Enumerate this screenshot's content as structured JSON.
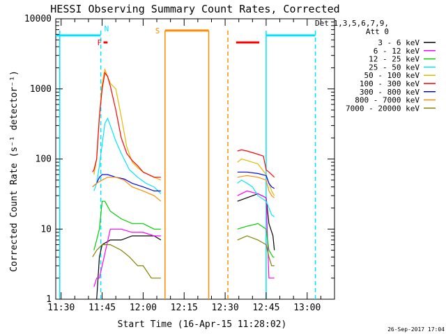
{
  "chart_data": {
    "type": "line",
    "title": "HESSI Observing Summary Count Rates, Corrected",
    "xlabel": "Start Time (16-Apr-15 11:28:02)",
    "ylabel": "Corrected Count Rate (s⁻¹ detector⁻¹)",
    "y_scale": "log",
    "ylim": [
      1,
      10000
    ],
    "xlim": [
      "11:28:02",
      "13:10:00"
    ],
    "x_ticks": [
      "11:30",
      "11:45",
      "12:00",
      "12:15",
      "12:30",
      "12:45",
      "13:00"
    ],
    "y_ticks": [
      "1",
      "10",
      "100",
      "1000",
      "10000"
    ],
    "footer_date": "26-Sep-2017 17:04",
    "legend_header": [
      "Det 1,3,5,6,7,9,",
      "Att 0"
    ],
    "series": [
      {
        "name": "3 - 6 keV",
        "color": "#000000",
        "segments": [
          [
            [
              "11:43:00",
              1
            ],
            [
              "11:43:30",
              2
            ],
            [
              "11:44:00",
              4
            ],
            [
              "11:45:00",
              6
            ],
            [
              "11:48:00",
              7
            ],
            [
              "11:52:00",
              7
            ],
            [
              "11:56:00",
              8
            ],
            [
              "12:00:00",
              8
            ],
            [
              "12:04:00",
              8
            ],
            [
              "12:06:30",
              7
            ]
          ],
          [
            [
              "12:34:30",
              25
            ],
            [
              "12:38:00",
              28
            ],
            [
              "12:42:00",
              32
            ],
            [
              "12:45:00",
              28
            ],
            [
              "12:46:00",
              12
            ],
            [
              "12:47:30",
              8
            ],
            [
              "12:48:00",
              5
            ]
          ]
        ]
      },
      {
        "name": "6 - 12 keV",
        "color": "#ff00ff",
        "segments": [
          [
            [
              "11:42:00",
              1.5
            ],
            [
              "11:43:00",
              2
            ],
            [
              "11:44:00",
              2
            ],
            [
              "11:45:00",
              3
            ],
            [
              "11:48:00",
              10
            ],
            [
              "11:52:00",
              10
            ],
            [
              "11:56:00",
              9
            ],
            [
              "12:00:00",
              9
            ],
            [
              "12:04:00",
              8
            ],
            [
              "12:06:30",
              8
            ]
          ],
          [
            [
              "12:34:30",
              30
            ],
            [
              "12:38:00",
              35
            ],
            [
              "12:42:00",
              32
            ],
            [
              "12:45:00",
              28
            ],
            [
              "12:46:00",
              2
            ],
            [
              "12:47:30",
              2
            ],
            [
              "12:48:00",
              2
            ]
          ]
        ]
      },
      {
        "name": "12 - 25 keV",
        "color": "#00cc00",
        "segments": [
          [
            [
              "11:42:00",
              5
            ],
            [
              "11:43:00",
              7
            ],
            [
              "11:44:00",
              10
            ],
            [
              "11:45:00",
              25
            ],
            [
              "11:46:00",
              25
            ],
            [
              "11:48:00",
              18
            ],
            [
              "11:52:00",
              14
            ],
            [
              "11:56:00",
              12
            ],
            [
              "12:00:00",
              12
            ],
            [
              "12:04:00",
              10
            ],
            [
              "12:06:30",
              10
            ]
          ],
          [
            [
              "12:34:30",
              10
            ],
            [
              "12:38:00",
              11
            ],
            [
              "12:42:00",
              12
            ],
            [
              "12:45:00",
              10
            ],
            [
              "12:46:00",
              5
            ],
            [
              "12:47:30",
              4
            ],
            [
              "12:48:00",
              4
            ]
          ]
        ]
      },
      {
        "name": "25 - 50 keV",
        "color": "#00e5ff",
        "segments": [
          [
            [
              "11:42:00",
              35
            ],
            [
              "11:43:00",
              45
            ],
            [
              "11:44:00",
              80
            ],
            [
              "11:46:00",
              320
            ],
            [
              "11:47:00",
              380
            ],
            [
              "11:48:00",
              300
            ],
            [
              "11:50:00",
              180
            ],
            [
              "11:52:00",
              120
            ],
            [
              "11:55:00",
              70
            ],
            [
              "11:58:00",
              55
            ],
            [
              "12:01:00",
              45
            ],
            [
              "12:04:00",
              40
            ],
            [
              "12:06:30",
              32
            ]
          ],
          [
            [
              "12:34:30",
              45
            ],
            [
              "12:36:00",
              50
            ],
            [
              "12:38:00",
              45
            ],
            [
              "12:40:00",
              40
            ],
            [
              "12:42:00",
              30
            ],
            [
              "12:45:00",
              25
            ],
            [
              "12:46:00",
              20
            ],
            [
              "12:47:00",
              16
            ],
            [
              "12:48:00",
              15
            ]
          ]
        ]
      },
      {
        "name": "50 - 100 keV",
        "color": "#e6b800",
        "segments": [
          [
            [
              "11:42:00",
              60
            ],
            [
              "11:43:00",
              100
            ],
            [
              "11:44:00",
              400
            ],
            [
              "11:45:00",
              1200
            ],
            [
              "11:46:00",
              1900
            ],
            [
              "11:47:00",
              1500
            ],
            [
              "11:48:00",
              1200
            ],
            [
              "11:50:00",
              1000
            ],
            [
              "11:52:00",
              400
            ],
            [
              "11:54:00",
              150
            ],
            [
              "11:56:00",
              90
            ],
            [
              "11:58:00",
              75
            ],
            [
              "12:00:00",
              65
            ],
            [
              "12:04:00",
              55
            ],
            [
              "12:06:30",
              50
            ]
          ],
          [
            [
              "12:34:30",
              90
            ],
            [
              "12:36:00",
              100
            ],
            [
              "12:38:00",
              95
            ],
            [
              "12:42:00",
              85
            ],
            [
              "12:45:00",
              60
            ],
            [
              "12:46:00",
              45
            ],
            [
              "12:47:00",
              35
            ],
            [
              "12:48:00",
              30
            ]
          ]
        ]
      },
      {
        "name": "100 - 300 keV",
        "color": "#ff0000",
        "segments": [
          [
            [
              "11:41:30",
              65
            ],
            [
              "11:42:00",
              70
            ],
            [
              "11:43:00",
              100
            ],
            [
              "11:44:00",
              400
            ],
            [
              "11:45:00",
              1000
            ],
            [
              "11:46:00",
              1700
            ],
            [
              "11:47:00",
              1500
            ],
            [
              "11:48:00",
              1100
            ],
            [
              "11:50:00",
              500
            ],
            [
              "11:52:00",
              200
            ],
            [
              "11:54:00",
              120
            ],
            [
              "11:56:00",
              95
            ],
            [
              "11:58:00",
              80
            ],
            [
              "12:00:00",
              65
            ],
            [
              "12:04:00",
              55
            ],
            [
              "12:06:30",
              55
            ]
          ],
          [
            [
              "12:34:30",
              130
            ],
            [
              "12:36:00",
              135
            ],
            [
              "12:38:00",
              130
            ],
            [
              "12:41:00",
              120
            ],
            [
              "12:44:00",
              110
            ],
            [
              "12:45:00",
              70
            ],
            [
              "12:46:00",
              65
            ],
            [
              "12:47:00",
              60
            ],
            [
              "12:48:00",
              55
            ]
          ]
        ]
      },
      {
        "name": "300 - 800 keV",
        "color": "#0000ff",
        "segments": [
          [
            [
              "11:41:30",
              40
            ],
            [
              "11:43:00",
              45
            ],
            [
              "11:44:00",
              55
            ],
            [
              "11:45:00",
              60
            ],
            [
              "11:47:00",
              60
            ],
            [
              "11:50:00",
              55
            ],
            [
              "11:53:00",
              52
            ],
            [
              "11:56:00",
              45
            ],
            [
              "12:00:00",
              40
            ],
            [
              "12:04:00",
              35
            ],
            [
              "12:06:30",
              35
            ]
          ],
          [
            [
              "12:34:30",
              65
            ],
            [
              "12:38:00",
              65
            ],
            [
              "12:42:00",
              62
            ],
            [
              "12:45:00",
              58
            ],
            [
              "12:46:00",
              45
            ],
            [
              "12:47:00",
              40
            ],
            [
              "12:48:00",
              38
            ]
          ]
        ]
      },
      {
        "name": "800 - 7000 keV",
        "color": "#ff8c00",
        "segments": [
          [
            [
              "11:41:30",
              40
            ],
            [
              "11:43:00",
              45
            ],
            [
              "11:45:00",
              50
            ],
            [
              "11:47:00",
              55
            ],
            [
              "11:50:00",
              55
            ],
            [
              "11:53:00",
              50
            ],
            [
              "11:56:00",
              40
            ],
            [
              "12:00:00",
              35
            ],
            [
              "12:04:00",
              30
            ],
            [
              "12:06:30",
              25
            ]
          ],
          [
            [
              "12:34:30",
              55
            ],
            [
              "12:38:00",
              58
            ],
            [
              "12:42:00",
              55
            ],
            [
              "12:45:00",
              50
            ],
            [
              "12:46:00",
              35
            ],
            [
              "12:47:00",
              30
            ],
            [
              "12:48:00",
              28
            ]
          ]
        ]
      },
      {
        "name": "7000 - 20000 keV",
        "color": "#808000",
        "segments": [
          [
            [
              "11:41:30",
              4
            ],
            [
              "11:43:00",
              5
            ],
            [
              "11:45:00",
              6
            ],
            [
              "11:48:00",
              6
            ],
            [
              "11:52:00",
              5
            ],
            [
              "11:55:00",
              4
            ],
            [
              "11:58:00",
              3
            ],
            [
              "12:00:00",
              3
            ],
            [
              "12:03:00",
              2
            ],
            [
              "12:06:30",
              2
            ]
          ],
          [
            [
              "12:34:30",
              7
            ],
            [
              "12:38:00",
              8
            ],
            [
              "12:42:00",
              7
            ],
            [
              "12:45:00",
              6
            ],
            [
              "12:46:00",
              4
            ],
            [
              "12:47:00",
              3
            ],
            [
              "12:48:00",
              3
            ]
          ]
        ]
      }
    ],
    "flags": [
      {
        "label": "",
        "color": "#00e5ff",
        "from": "11:28:02",
        "to": "11:44:30",
        "value": 5800
      },
      {
        "label": "N",
        "color": "#00e5ff",
        "from": "11:44:30",
        "to": "11:44:30",
        "value": 5800
      },
      {
        "label": "F",
        "color": "#ff0000",
        "from": "11:45:30",
        "to": "11:47:00",
        "value": 4600
      },
      {
        "label": "S",
        "color": "#ff8c00",
        "from": "12:08:00",
        "to": "12:24:00",
        "value": 6800
      },
      {
        "label": "",
        "color": "#ff0000",
        "from": "12:34:00",
        "to": "12:42:30",
        "value": 4600
      },
      {
        "label": "",
        "color": "#00e5ff",
        "from": "12:45:00",
        "to": "13:03:00",
        "value": 5800
      }
    ],
    "vertical_lines": [
      {
        "time": "11:29:30",
        "color": "#00e5ff",
        "style": "solid"
      },
      {
        "time": "11:44:30",
        "color": "#00e5ff",
        "style": "dashed"
      },
      {
        "time": "12:08:00",
        "color": "#ff8c00",
        "style": "solid"
      },
      {
        "time": "12:24:00",
        "color": "#ff8c00",
        "style": "solid"
      },
      {
        "time": "12:31:00",
        "color": "#ff8c00",
        "style": "dashed"
      },
      {
        "time": "12:45:00",
        "color": "#00e5ff",
        "style": "solid"
      },
      {
        "time": "13:03:00",
        "color": "#00e5ff",
        "style": "dashed"
      }
    ]
  }
}
